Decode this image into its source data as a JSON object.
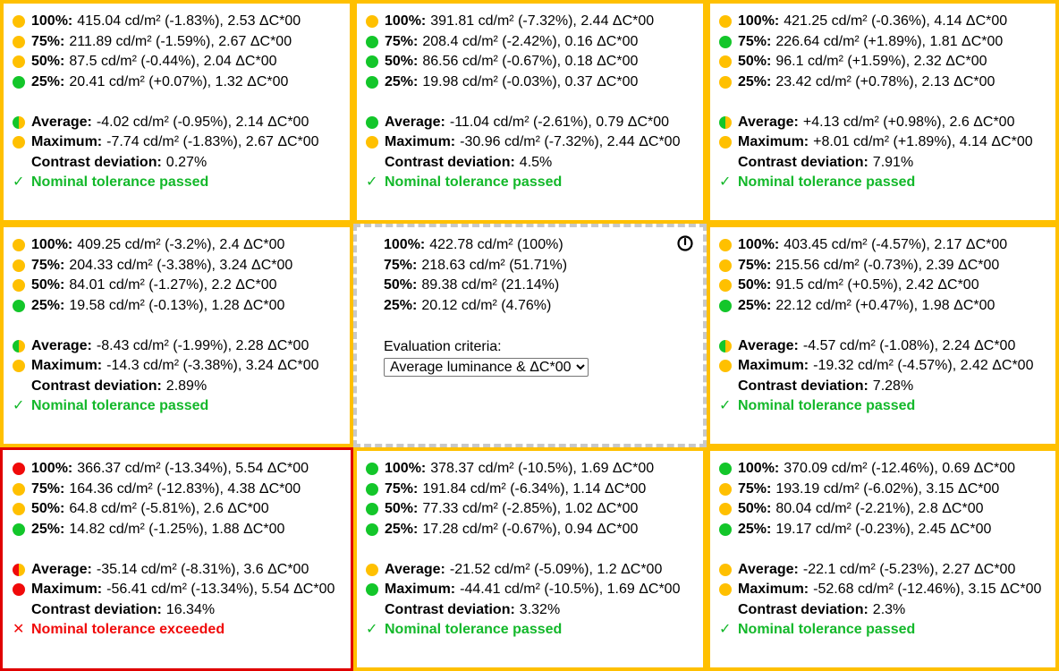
{
  "colors": {
    "cell_border": "#ffc000",
    "failed_border": "#e00000",
    "dot_yellow": "#ffc000",
    "dot_green": "#13c62a",
    "dot_red": "#f00a0a",
    "pass_text": "#13b82a",
    "fail_text": "#f00a0a"
  },
  "center": {
    "rows": [
      {
        "label": "100%:",
        "value": "422.78 cd/m² (100%)"
      },
      {
        "label": "75%:",
        "value": "218.63 cd/m² (51.71%)"
      },
      {
        "label": "50%:",
        "value": "89.38 cd/m² (21.14%)"
      },
      {
        "label": "25%:",
        "value": "20.12 cd/m² (4.76%)"
      }
    ],
    "criteria_label": "Evaluation criteria:",
    "criteria_selected": "Average luminance & ΔC*00",
    "icon": "power-icon"
  },
  "cells": [
    {
      "id": "top-left",
      "rows": [
        {
          "dot": "yellow",
          "label": "100%:",
          "value": "415.04 cd/m² (-1.83%), 2.53 ΔC*00"
        },
        {
          "dot": "yellow",
          "label": "75%:",
          "value": "211.89 cd/m² (-1.59%), 2.67 ΔC*00"
        },
        {
          "dot": "yellow",
          "label": "50%:",
          "value": "87.5 cd/m² (-0.44%), 2.04 ΔC*00"
        },
        {
          "dot": "green",
          "label": "25%:",
          "value": "20.41 cd/m² (+0.07%), 1.32 ΔC*00"
        }
      ],
      "average": {
        "dot": "half-gy",
        "label": "Average:",
        "value": "-4.02 cd/m² (-0.95%), 2.14 ΔC*00"
      },
      "maximum": {
        "dot": "yellow",
        "label": "Maximum:",
        "value": "-7.74 cd/m² (-1.83%), 2.67 ΔC*00"
      },
      "contrast": {
        "label": "Contrast deviation:",
        "value": "0.27%"
      },
      "status": {
        "result": "pass",
        "mark": "✓",
        "text": "Nominal tolerance passed"
      }
    },
    {
      "id": "top-middle",
      "rows": [
        {
          "dot": "yellow",
          "label": "100%:",
          "value": "391.81 cd/m² (-7.32%), 2.44 ΔC*00"
        },
        {
          "dot": "green",
          "label": "75%:",
          "value": "208.4 cd/m² (-2.42%), 0.16 ΔC*00"
        },
        {
          "dot": "green",
          "label": "50%:",
          "value": "86.56 cd/m² (-0.67%), 0.18 ΔC*00"
        },
        {
          "dot": "green",
          "label": "25%:",
          "value": "19.98 cd/m² (-0.03%), 0.37 ΔC*00"
        }
      ],
      "average": {
        "dot": "green",
        "label": "Average:",
        "value": "-11.04 cd/m² (-2.61%), 0.79 ΔC*00"
      },
      "maximum": {
        "dot": "yellow",
        "label": "Maximum:",
        "value": "-30.96 cd/m² (-7.32%), 2.44 ΔC*00"
      },
      "contrast": {
        "label": "Contrast deviation:",
        "value": "4.5%"
      },
      "status": {
        "result": "pass",
        "mark": "✓",
        "text": "Nominal tolerance passed"
      }
    },
    {
      "id": "top-right",
      "rows": [
        {
          "dot": "yellow",
          "label": "100%:",
          "value": "421.25 cd/m² (-0.36%), 4.14 ΔC*00"
        },
        {
          "dot": "green",
          "label": "75%:",
          "value": "226.64 cd/m² (+1.89%), 1.81 ΔC*00"
        },
        {
          "dot": "yellow",
          "label": "50%:",
          "value": "96.1 cd/m² (+1.59%), 2.32 ΔC*00"
        },
        {
          "dot": "yellow",
          "label": "25%:",
          "value": "23.42 cd/m² (+0.78%), 2.13 ΔC*00"
        }
      ],
      "average": {
        "dot": "half-gy",
        "label": "Average:",
        "value": "+4.13 cd/m² (+0.98%), 2.6 ΔC*00"
      },
      "maximum": {
        "dot": "yellow",
        "label": "Maximum:",
        "value": "+8.01 cd/m² (+1.89%), 4.14 ΔC*00"
      },
      "contrast": {
        "label": "Contrast deviation:",
        "value": "7.91%"
      },
      "status": {
        "result": "pass",
        "mark": "✓",
        "text": "Nominal tolerance passed"
      }
    },
    {
      "id": "middle-left",
      "rows": [
        {
          "dot": "yellow",
          "label": "100%:",
          "value": "409.25 cd/m² (-3.2%), 2.4 ΔC*00"
        },
        {
          "dot": "yellow",
          "label": "75%:",
          "value": "204.33 cd/m² (-3.38%), 3.24 ΔC*00"
        },
        {
          "dot": "yellow",
          "label": "50%:",
          "value": "84.01 cd/m² (-1.27%), 2.2 ΔC*00"
        },
        {
          "dot": "green",
          "label": "25%:",
          "value": "19.58 cd/m² (-0.13%), 1.28 ΔC*00"
        }
      ],
      "average": {
        "dot": "half-gy",
        "label": "Average:",
        "value": "-8.43 cd/m² (-1.99%), 2.28 ΔC*00"
      },
      "maximum": {
        "dot": "yellow",
        "label": "Maximum:",
        "value": "-14.3 cd/m² (-3.38%), 3.24 ΔC*00"
      },
      "contrast": {
        "label": "Contrast deviation:",
        "value": "2.89%"
      },
      "status": {
        "result": "pass",
        "mark": "✓",
        "text": "Nominal tolerance passed"
      }
    },
    {
      "id": "middle-right",
      "rows": [
        {
          "dot": "yellow",
          "label": "100%:",
          "value": "403.45 cd/m² (-4.57%), 2.17 ΔC*00"
        },
        {
          "dot": "yellow",
          "label": "75%:",
          "value": "215.56 cd/m² (-0.73%), 2.39 ΔC*00"
        },
        {
          "dot": "yellow",
          "label": "50%:",
          "value": "91.5 cd/m² (+0.5%), 2.42 ΔC*00"
        },
        {
          "dot": "green",
          "label": "25%:",
          "value": "22.12 cd/m² (+0.47%), 1.98 ΔC*00"
        }
      ],
      "average": {
        "dot": "half-gy",
        "label": "Average:",
        "value": "-4.57 cd/m² (-1.08%), 2.24 ΔC*00"
      },
      "maximum": {
        "dot": "yellow",
        "label": "Maximum:",
        "value": "-19.32 cd/m² (-4.57%), 2.42 ΔC*00"
      },
      "contrast": {
        "label": "Contrast deviation:",
        "value": "7.28%"
      },
      "status": {
        "result": "pass",
        "mark": "✓",
        "text": "Nominal tolerance passed"
      }
    },
    {
      "id": "bottom-left",
      "rows": [
        {
          "dot": "red",
          "label": "100%:",
          "value": "366.37 cd/m² (-13.34%), 5.54 ΔC*00"
        },
        {
          "dot": "yellow",
          "label": "75%:",
          "value": "164.36 cd/m² (-12.83%), 4.38 ΔC*00"
        },
        {
          "dot": "yellow",
          "label": "50%:",
          "value": "64.8 cd/m² (-5.81%), 2.6 ΔC*00"
        },
        {
          "dot": "green",
          "label": "25%:",
          "value": "14.82 cd/m² (-1.25%), 1.88 ΔC*00"
        }
      ],
      "average": {
        "dot": "half-ry",
        "label": "Average:",
        "value": "-35.14 cd/m² (-8.31%), 3.6 ΔC*00"
      },
      "maximum": {
        "dot": "red",
        "label": "Maximum:",
        "value": "-56.41 cd/m² (-13.34%), 5.54 ΔC*00"
      },
      "contrast": {
        "label": "Contrast deviation:",
        "value": "16.34%"
      },
      "status": {
        "result": "fail",
        "mark": "✕",
        "text": "Nominal tolerance exceeded"
      }
    },
    {
      "id": "bottom-middle",
      "rows": [
        {
          "dot": "green",
          "label": "100%:",
          "value": "378.37 cd/m² (-10.5%), 1.69 ΔC*00"
        },
        {
          "dot": "green",
          "label": "75%:",
          "value": "191.84 cd/m² (-6.34%), 1.14 ΔC*00"
        },
        {
          "dot": "green",
          "label": "50%:",
          "value": "77.33 cd/m² (-2.85%), 1.02 ΔC*00"
        },
        {
          "dot": "green",
          "label": "25%:",
          "value": "17.28 cd/m² (-0.67%), 0.94 ΔC*00"
        }
      ],
      "average": {
        "dot": "yellow",
        "label": "Average:",
        "value": "-21.52 cd/m² (-5.09%), 1.2 ΔC*00"
      },
      "maximum": {
        "dot": "green",
        "label": "Maximum:",
        "value": "-44.41 cd/m² (-10.5%), 1.69 ΔC*00"
      },
      "contrast": {
        "label": "Contrast deviation:",
        "value": "3.32%"
      },
      "status": {
        "result": "pass",
        "mark": "✓",
        "text": "Nominal tolerance passed"
      }
    },
    {
      "id": "bottom-right",
      "rows": [
        {
          "dot": "green",
          "label": "100%:",
          "value": "370.09 cd/m² (-12.46%), 0.69 ΔC*00"
        },
        {
          "dot": "yellow",
          "label": "75%:",
          "value": "193.19 cd/m² (-6.02%), 3.15 ΔC*00"
        },
        {
          "dot": "yellow",
          "label": "50%:",
          "value": "80.04 cd/m² (-2.21%), 2.8 ΔC*00"
        },
        {
          "dot": "green",
          "label": "25%:",
          "value": "19.17 cd/m² (-0.23%), 2.45 ΔC*00"
        }
      ],
      "average": {
        "dot": "yellow",
        "label": "Average:",
        "value": "-22.1 cd/m² (-5.23%), 2.27 ΔC*00"
      },
      "maximum": {
        "dot": "yellow",
        "label": "Maximum:",
        "value": "-52.68 cd/m² (-12.46%), 3.15 ΔC*00"
      },
      "contrast": {
        "label": "Contrast deviation:",
        "value": "2.3%"
      },
      "status": {
        "result": "pass",
        "mark": "✓",
        "text": "Nominal tolerance passed"
      }
    }
  ]
}
